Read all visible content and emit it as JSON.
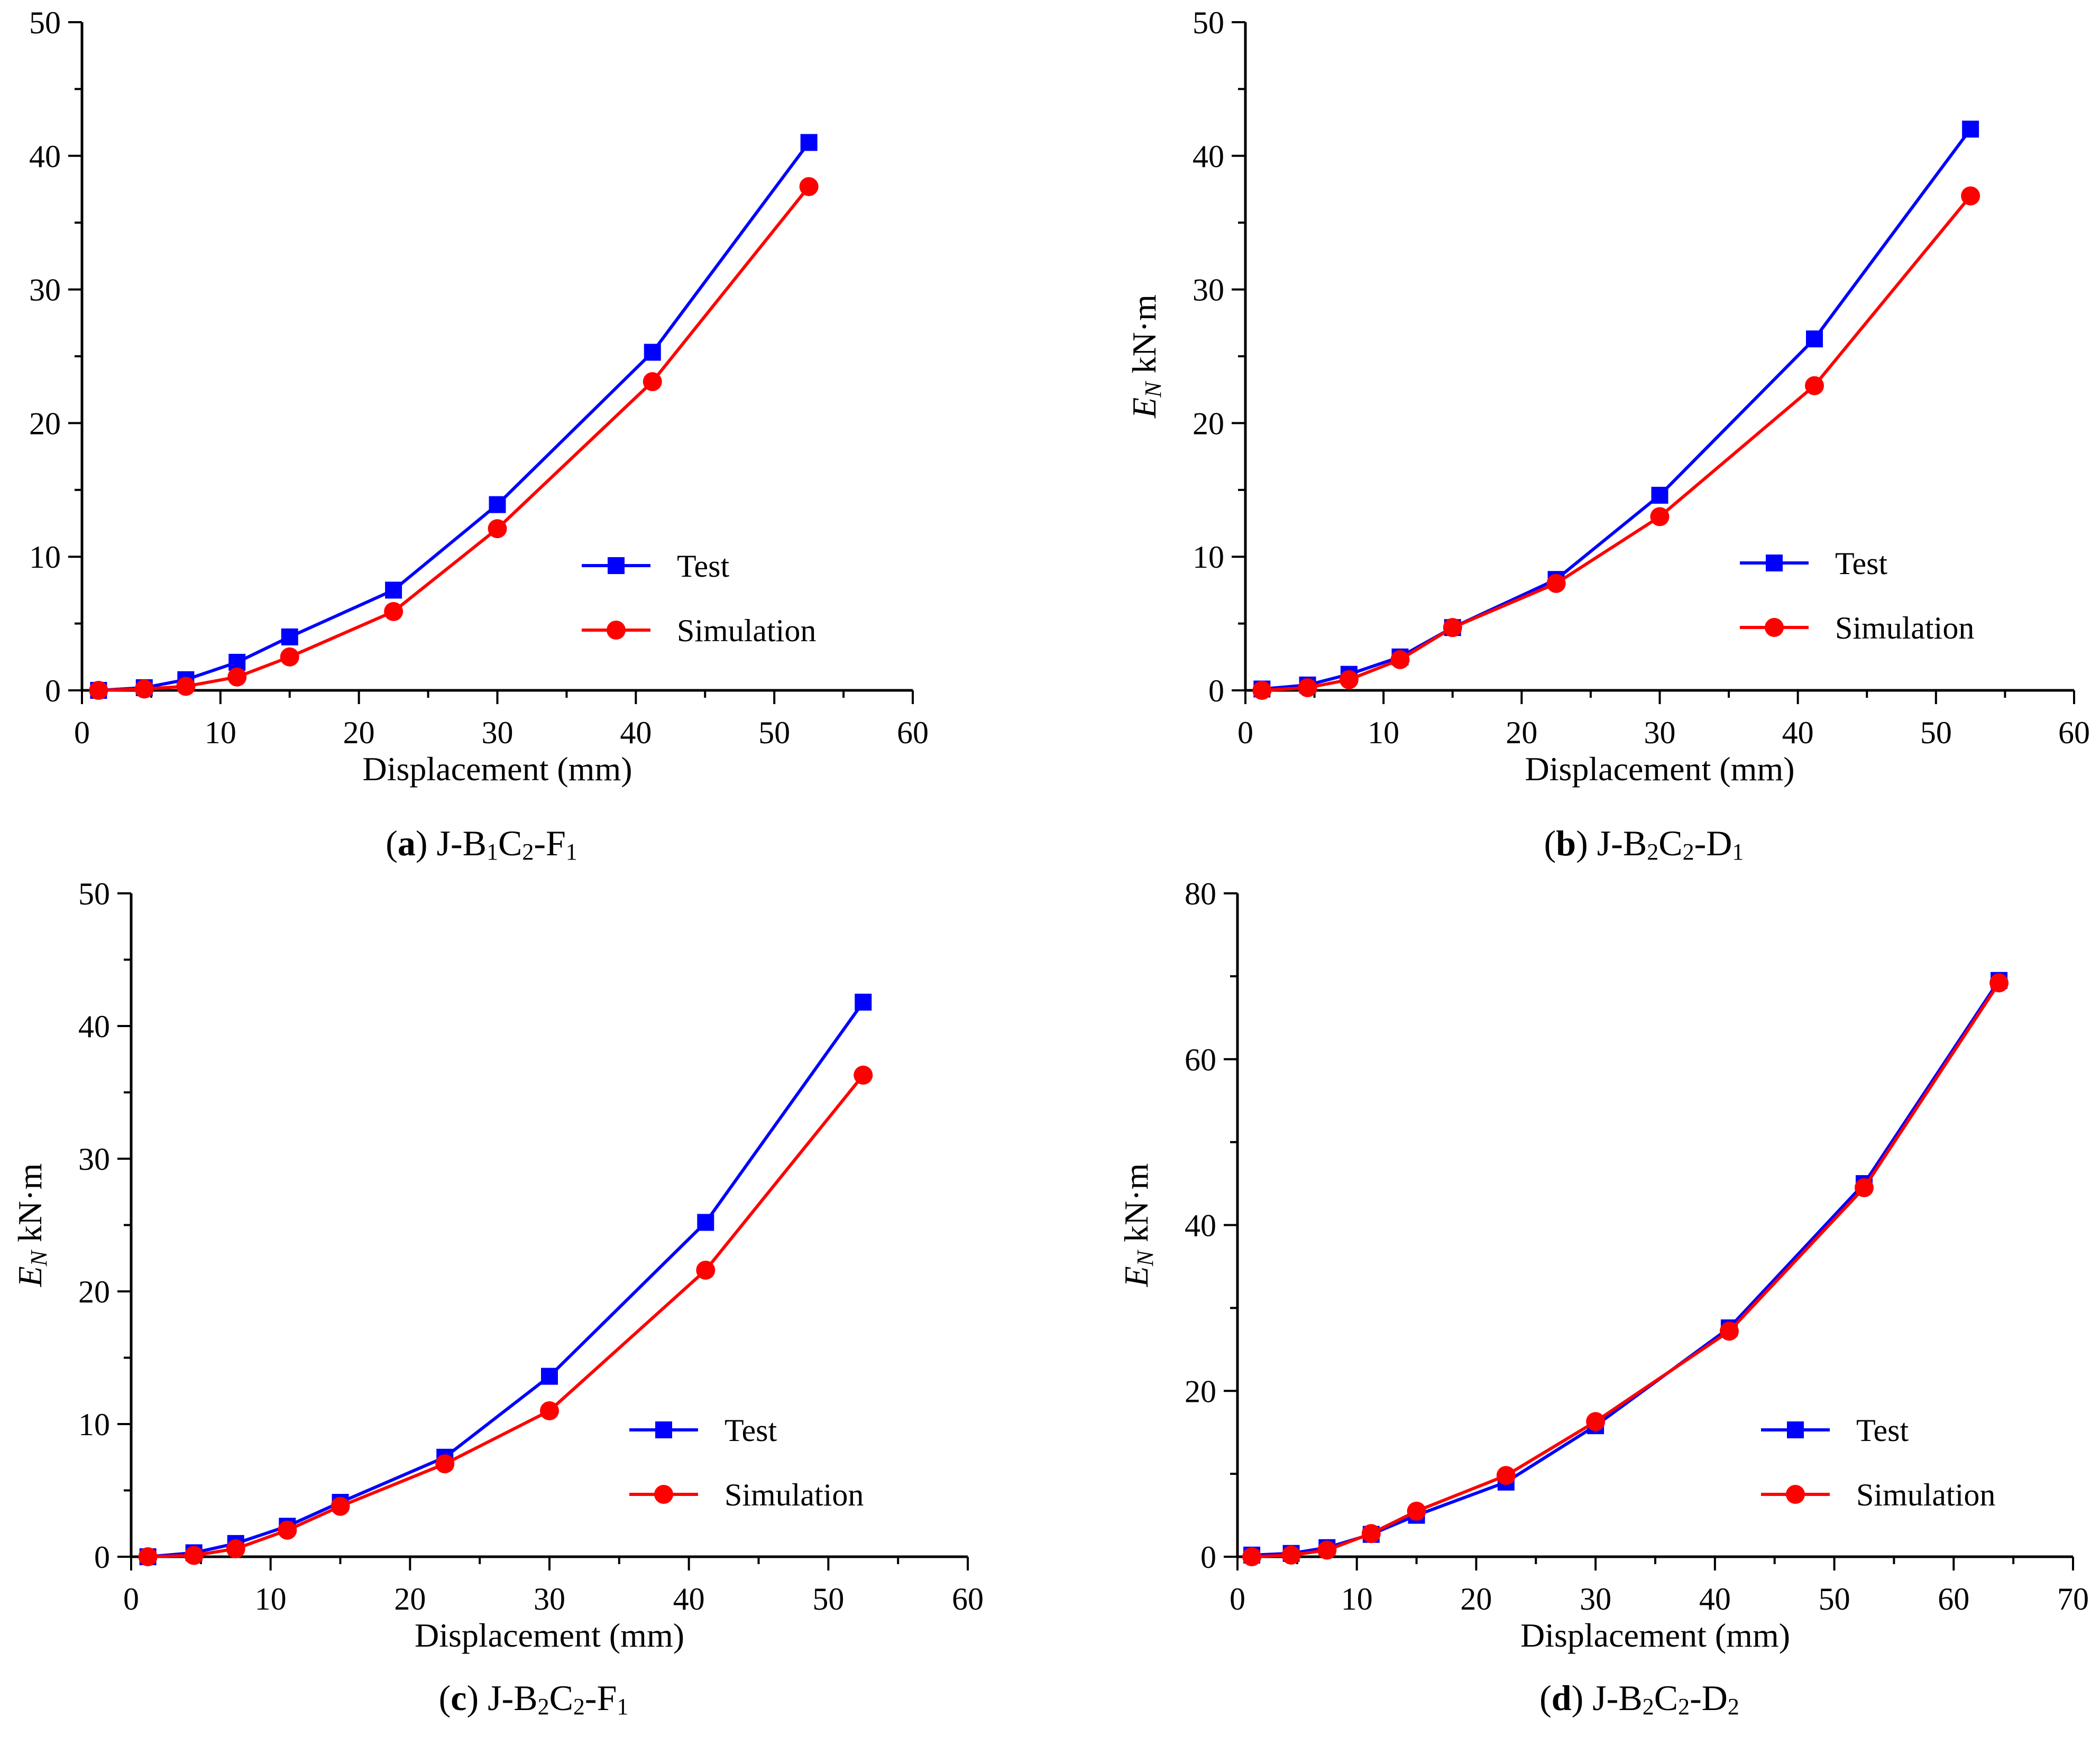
{
  "chart_data": [
    {
      "type": "line",
      "panel_label": "a",
      "panel_title": "J-B1C2-F1",
      "title_parts": [
        [
          "J-B",
          ""
        ],
        [
          "1",
          "sub"
        ],
        [
          "C",
          ""
        ],
        [
          "2",
          "sub"
        ],
        [
          "-F",
          ""
        ],
        [
          "1",
          "sub"
        ]
      ],
      "xlabel": "Displacement (mm)",
      "ylabel": "",
      "ylabel_parts": [],
      "xlim": [
        0,
        60
      ],
      "ylim": [
        0,
        50
      ],
      "xticks": [
        0,
        10,
        20,
        30,
        40,
        50,
        60
      ],
      "yticks": [
        0,
        10,
        20,
        30,
        40,
        50
      ],
      "legend_position": "lower-right",
      "series": [
        {
          "name": "Test",
          "color": "#0000ff",
          "marker": "square",
          "x": [
            1.2,
            4.5,
            7.5,
            11.2,
            15,
            22.5,
            30,
            41.2,
            52.5
          ],
          "y": [
            0,
            0.2,
            0.8,
            2.1,
            4.0,
            7.5,
            13.9,
            25.3,
            41.0
          ]
        },
        {
          "name": "Simulation",
          "color": "#ff0000",
          "marker": "circle",
          "x": [
            1.2,
            4.5,
            7.5,
            11.2,
            15,
            22.5,
            30,
            41.2,
            52.5
          ],
          "y": [
            0,
            0.1,
            0.3,
            1.0,
            2.5,
            5.9,
            12.1,
            23.1,
            37.7
          ]
        }
      ]
    },
    {
      "type": "line",
      "panel_label": "b",
      "panel_title": "J-B2C2-D1",
      "title_parts": [
        [
          "J-B",
          ""
        ],
        [
          "2",
          "sub"
        ],
        [
          "C",
          ""
        ],
        [
          "2",
          "sub"
        ],
        [
          "-D",
          ""
        ],
        [
          "1",
          "sub"
        ]
      ],
      "xlabel": "Displacement (mm)",
      "ylabel": "EN kN·m",
      "ylabel_parts": [
        [
          "E",
          "italic"
        ],
        [
          "N",
          "italic-sub"
        ],
        [
          "  kN·m",
          ""
        ]
      ],
      "xlim": [
        0,
        60
      ],
      "ylim": [
        0,
        50
      ],
      "xticks": [
        0,
        10,
        20,
        30,
        40,
        50,
        60
      ],
      "yticks": [
        0,
        10,
        20,
        30,
        40,
        50
      ],
      "legend_position": "lower-right",
      "series": [
        {
          "name": "Test",
          "color": "#0000ff",
          "marker": "square",
          "x": [
            1.2,
            4.5,
            7.5,
            11.2,
            15,
            22.5,
            30,
            41.2,
            52.5
          ],
          "y": [
            0.1,
            0.4,
            1.2,
            2.5,
            4.7,
            8.3,
            14.6,
            26.3,
            42.0
          ]
        },
        {
          "name": "Simulation",
          "color": "#ff0000",
          "marker": "circle",
          "x": [
            1.2,
            4.5,
            7.5,
            11.2,
            15,
            22.5,
            30,
            41.2,
            52.5
          ],
          "y": [
            0,
            0.2,
            0.8,
            2.3,
            4.7,
            8.0,
            13.0,
            22.8,
            37.0
          ]
        }
      ]
    },
    {
      "type": "line",
      "panel_label": "c",
      "panel_title": "J-B2C2-F1",
      "title_parts": [
        [
          "J-B",
          ""
        ],
        [
          "2",
          "sub"
        ],
        [
          "C",
          ""
        ],
        [
          "2",
          "sub"
        ],
        [
          "-F",
          ""
        ],
        [
          "1",
          "sub"
        ]
      ],
      "xlabel": "Displacement (mm)",
      "ylabel": "EN kN·m",
      "ylabel_parts": [
        [
          "E",
          "italic"
        ],
        [
          "N",
          "italic-sub"
        ],
        [
          "  kN·m",
          ""
        ]
      ],
      "xlim": [
        0,
        60
      ],
      "ylim": [
        0,
        50
      ],
      "xticks": [
        0,
        10,
        20,
        30,
        40,
        50,
        60
      ],
      "yticks": [
        0,
        10,
        20,
        30,
        40,
        50
      ],
      "legend_position": "lower-right",
      "series": [
        {
          "name": "Test",
          "color": "#0000ff",
          "marker": "square",
          "x": [
            1.2,
            4.5,
            7.5,
            11.2,
            15,
            22.5,
            30,
            41.2,
            52.5
          ],
          "y": [
            0,
            0.3,
            1.0,
            2.3,
            4.1,
            7.5,
            13.6,
            25.2,
            41.8
          ]
        },
        {
          "name": "Simulation",
          "color": "#ff0000",
          "marker": "circle",
          "x": [
            1.2,
            4.5,
            7.5,
            11.2,
            15,
            22.5,
            30,
            41.2,
            52.5
          ],
          "y": [
            0,
            0.1,
            0.6,
            2.0,
            3.8,
            7.0,
            11.0,
            21.6,
            36.3
          ]
        }
      ]
    },
    {
      "type": "line",
      "panel_label": "d",
      "panel_title": "J-B2C2-D2",
      "title_parts": [
        [
          "J-B",
          ""
        ],
        [
          "2",
          "sub"
        ],
        [
          "C",
          ""
        ],
        [
          "2",
          "sub"
        ],
        [
          "-D",
          ""
        ],
        [
          "2",
          "sub"
        ]
      ],
      "xlabel": "Displacement (mm)",
      "ylabel": "EN kN·m",
      "ylabel_parts": [
        [
          "E",
          "italic"
        ],
        [
          "N",
          "italic-sub"
        ],
        [
          "  kN·m",
          ""
        ]
      ],
      "xlim": [
        0,
        70
      ],
      "ylim": [
        0,
        80
      ],
      "xticks": [
        0,
        10,
        20,
        30,
        40,
        50,
        60,
        70
      ],
      "yticks": [
        0,
        20,
        40,
        60,
        80
      ],
      "legend_position": "lower-right",
      "series": [
        {
          "name": "Test",
          "color": "#0000ff",
          "marker": "square",
          "x": [
            1.2,
            4.5,
            7.5,
            11.2,
            15,
            22.5,
            30,
            41.2,
            52.5,
            63.8
          ],
          "y": [
            0.2,
            0.4,
            1.1,
            2.7,
            5.0,
            9.0,
            15.8,
            27.6,
            45.0,
            69.5
          ]
        },
        {
          "name": "Simulation",
          "color": "#ff0000",
          "marker": "circle",
          "x": [
            1.2,
            4.5,
            7.5,
            11.2,
            15,
            22.5,
            30,
            41.2,
            52.5,
            63.8
          ],
          "y": [
            0,
            0.2,
            0.8,
            2.8,
            5.5,
            9.8,
            16.3,
            27.2,
            44.5,
            69.2
          ]
        }
      ]
    }
  ]
}
